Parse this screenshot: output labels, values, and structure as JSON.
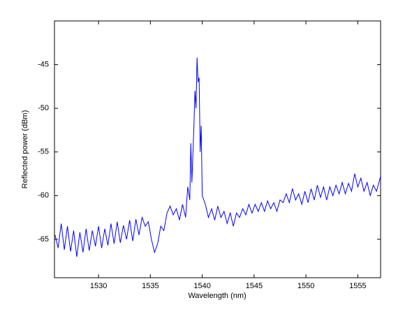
{
  "chart_data": {
    "type": "line",
    "xlabel": "Wavelength (nm)",
    "ylabel": "Reflected power (dBm)",
    "xlim": [
      1525.75,
      1557.2
    ],
    "ylim": [
      -69.4,
      -40
    ],
    "xticks": [
      1530,
      1535,
      1540,
      1545,
      1550,
      1555
    ],
    "yticks": [
      -65,
      -60,
      -55,
      -50,
      -45
    ],
    "grid": false,
    "series": [
      {
        "color": "#0000ff",
        "x": [
          1525.8,
          1526.1,
          1526.4,
          1526.7,
          1527.0,
          1527.3,
          1527.6,
          1527.9,
          1528.2,
          1528.5,
          1528.8,
          1529.1,
          1529.4,
          1529.7,
          1530.0,
          1530.3,
          1530.6,
          1530.9,
          1531.2,
          1531.5,
          1531.8,
          1532.1,
          1532.4,
          1532.7,
          1533.0,
          1533.3,
          1533.6,
          1533.9,
          1534.2,
          1534.5,
          1534.8,
          1535.1,
          1535.4,
          1535.7,
          1536.0,
          1536.3,
          1536.6,
          1536.9,
          1537.2,
          1537.5,
          1537.8,
          1538.1,
          1538.4,
          1538.6,
          1538.8,
          1538.9,
          1539.0,
          1539.2,
          1539.3,
          1539.4,
          1539.5,
          1539.6,
          1539.7,
          1539.8,
          1539.9,
          1540.0,
          1540.3,
          1540.6,
          1540.9,
          1541.2,
          1541.5,
          1541.8,
          1542.1,
          1542.4,
          1542.7,
          1543.0,
          1543.3,
          1543.6,
          1543.9,
          1544.2,
          1544.5,
          1544.8,
          1545.1,
          1545.4,
          1545.7,
          1546.0,
          1546.3,
          1546.6,
          1546.9,
          1547.2,
          1547.5,
          1547.8,
          1548.1,
          1548.4,
          1548.7,
          1549.0,
          1549.3,
          1549.6,
          1549.9,
          1550.2,
          1550.5,
          1550.8,
          1551.1,
          1551.4,
          1551.7,
          1552.0,
          1552.3,
          1552.6,
          1552.9,
          1553.2,
          1553.5,
          1553.8,
          1554.1,
          1554.4,
          1554.7,
          1555.0,
          1555.3,
          1555.6,
          1555.9,
          1556.2,
          1556.5,
          1556.8,
          1557.2
        ],
        "values": [
          -64.5,
          -66.0,
          -63.2,
          -66.2,
          -63.5,
          -66.4,
          -64.0,
          -67.0,
          -64.2,
          -66.5,
          -63.8,
          -66.3,
          -64.0,
          -65.8,
          -63.5,
          -66.0,
          -63.8,
          -65.7,
          -63.2,
          -65.5,
          -63.0,
          -65.4,
          -63.4,
          -65.0,
          -62.8,
          -65.2,
          -62.7,
          -64.5,
          -62.5,
          -63.5,
          -63.0,
          -65.0,
          -66.5,
          -65.5,
          -63.5,
          -64.0,
          -62.0,
          -61.2,
          -62.2,
          -61.5,
          -62.8,
          -61.0,
          -62.5,
          -59.0,
          -60.5,
          -54.0,
          -58.5,
          -52.0,
          -48.0,
          -50.0,
          -44.2,
          -47.0,
          -46.5,
          -55.0,
          -52.0,
          -60.0,
          -61.0,
          -62.5,
          -61.5,
          -62.8,
          -61.2,
          -62.5,
          -61.8,
          -63.2,
          -62.0,
          -63.5,
          -62.0,
          -62.5,
          -61.5,
          -62.2,
          -61.0,
          -62.0,
          -61.0,
          -61.8,
          -60.8,
          -61.8,
          -60.6,
          -61.5,
          -60.8,
          -61.8,
          -60.5,
          -60.8,
          -59.8,
          -60.8,
          -59.2,
          -60.5,
          -59.8,
          -61.0,
          -59.5,
          -60.8,
          -59.2,
          -60.5,
          -58.8,
          -60.2,
          -59.0,
          -60.5,
          -59.0,
          -60.0,
          -58.8,
          -59.8,
          -58.5,
          -59.8,
          -58.6,
          -59.5,
          -57.5,
          -59.0,
          -58.0,
          -59.5,
          -58.5,
          -60.0,
          -58.8,
          -59.5,
          -57.8
        ]
      }
    ]
  }
}
